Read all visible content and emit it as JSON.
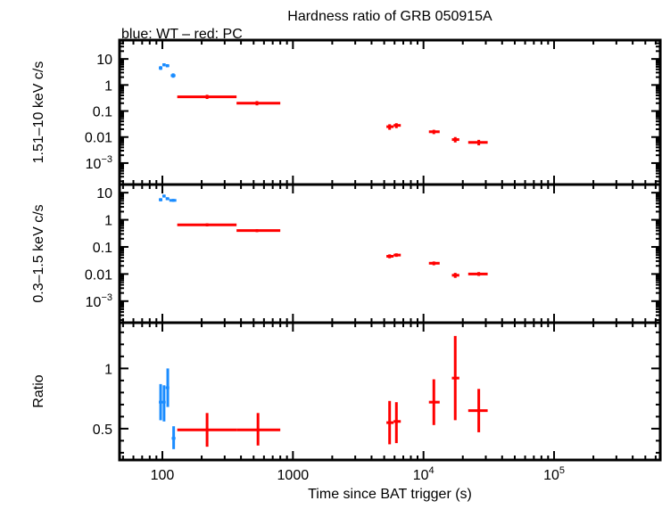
{
  "chart_data": {
    "type": "scatter",
    "title": "Hardness ratio of GRB 050915A",
    "subtitle": "blue: WT – red: PC",
    "xlabel": "Time since BAT trigger (s)",
    "xscale": "log",
    "xlim": [
      47,
      650000
    ],
    "xticks": [
      {
        "value": 100,
        "label": "100"
      },
      {
        "value": 1000,
        "label": "1000"
      },
      {
        "value": 10000,
        "base": "10",
        "exp": "4"
      },
      {
        "value": 100000,
        "base": "10",
        "exp": "5"
      }
    ],
    "colors": {
      "WT": "#1a8cff",
      "PC": "#ff0000"
    },
    "panels": [
      {
        "ylabel": "1.51–10 keV c/s",
        "yscale": "log",
        "ylim": [
          0.00015,
          53
        ],
        "yticks": [
          {
            "value": 10,
            "label": "10"
          },
          {
            "value": 1,
            "label": "1"
          },
          {
            "value": 0.1,
            "label": "0.1"
          },
          {
            "value": 0.01,
            "label": "0.01"
          },
          {
            "value": 0.001,
            "base": "10",
            "exp": "−3"
          }
        ],
        "series": [
          {
            "mode": "WT",
            "points": [
              {
                "x": 97,
                "xlo": 94,
                "xhi": 100,
                "y": 4.5,
                "ylo": 3.8,
                "yhi": 5.3
              },
              {
                "x": 103,
                "xlo": 100,
                "xhi": 106,
                "y": 6.0,
                "ylo": 5.2,
                "yhi": 6.8
              },
              {
                "x": 109,
                "xlo": 106,
                "xhi": 113,
                "y": 5.5,
                "ylo": 4.8,
                "yhi": 6.3
              },
              {
                "x": 121,
                "xlo": 116,
                "xhi": 126,
                "y": 2.3,
                "ylo": 1.9,
                "yhi": 2.8
              }
            ]
          },
          {
            "mode": "PC",
            "points": [
              {
                "x": 220,
                "xlo": 130,
                "xhi": 370,
                "y": 0.35,
                "ylo": 0.29,
                "yhi": 0.42
              },
              {
                "x": 530,
                "xlo": 370,
                "xhi": 800,
                "y": 0.2,
                "ylo": 0.165,
                "yhi": 0.24
              },
              {
                "x": 5500,
                "xlo": 5200,
                "xhi": 5900,
                "y": 0.025,
                "ylo": 0.019,
                "yhi": 0.031
              },
              {
                "x": 6200,
                "xlo": 5900,
                "xhi": 6700,
                "y": 0.028,
                "ylo": 0.022,
                "yhi": 0.034
              },
              {
                "x": 12000,
                "xlo": 11000,
                "xhi": 13300,
                "y": 0.016,
                "ylo": 0.013,
                "yhi": 0.019
              },
              {
                "x": 17500,
                "xlo": 16500,
                "xhi": 18800,
                "y": 0.008,
                "ylo": 0.0062,
                "yhi": 0.01
              },
              {
                "x": 26500,
                "xlo": 22000,
                "xhi": 31000,
                "y": 0.0062,
                "ylo": 0.0048,
                "yhi": 0.0078
              }
            ]
          }
        ]
      },
      {
        "ylabel": "0.3–1.5 keV c/s",
        "yscale": "log",
        "ylim": [
          0.00016,
          20
        ],
        "yticks": [
          {
            "value": 10,
            "label": "10"
          },
          {
            "value": 1,
            "label": "1"
          },
          {
            "value": 0.1,
            "label": "0.1"
          },
          {
            "value": 0.01,
            "label": "0.01"
          },
          {
            "value": 0.001,
            "base": "10",
            "exp": "−3"
          }
        ],
        "series": [
          {
            "mode": "WT",
            "points": [
              {
                "x": 97,
                "xlo": 94,
                "xhi": 100,
                "y": 5.5,
                "ylo": 4.8,
                "yhi": 6.3
              },
              {
                "x": 103,
                "xlo": 100,
                "xhi": 106,
                "y": 7.5,
                "ylo": 6.6,
                "yhi": 8.5
              },
              {
                "x": 109,
                "xlo": 106,
                "xhi": 113,
                "y": 6.0,
                "ylo": 5.3,
                "yhi": 6.8
              },
              {
                "x": 121,
                "xlo": 113,
                "xhi": 128,
                "y": 5.2,
                "ylo": 4.6,
                "yhi": 5.9
              }
            ]
          },
          {
            "mode": "PC",
            "points": [
              {
                "x": 220,
                "xlo": 130,
                "xhi": 370,
                "y": 0.65,
                "ylo": 0.57,
                "yhi": 0.74
              },
              {
                "x": 530,
                "xlo": 370,
                "xhi": 800,
                "y": 0.4,
                "ylo": 0.35,
                "yhi": 0.45
              },
              {
                "x": 5500,
                "xlo": 5200,
                "xhi": 5900,
                "y": 0.045,
                "ylo": 0.038,
                "yhi": 0.053
              },
              {
                "x": 6200,
                "xlo": 5900,
                "xhi": 6700,
                "y": 0.05,
                "ylo": 0.043,
                "yhi": 0.058
              },
              {
                "x": 12000,
                "xlo": 11000,
                "xhi": 13300,
                "y": 0.025,
                "ylo": 0.021,
                "yhi": 0.029
              },
              {
                "x": 17500,
                "xlo": 16500,
                "xhi": 18800,
                "y": 0.009,
                "ylo": 0.0072,
                "yhi": 0.011
              },
              {
                "x": 26500,
                "xlo": 22000,
                "xhi": 31000,
                "y": 0.01,
                "ylo": 0.0085,
                "yhi": 0.0118
              }
            ]
          }
        ]
      },
      {
        "ylabel": "Ratio",
        "yscale": "linear",
        "ylim": [
          0.24,
          1.38
        ],
        "yticks": [
          {
            "value": 1,
            "label": "1"
          },
          {
            "value": 0.5,
            "label": "0.5"
          }
        ],
        "series": [
          {
            "mode": "WT",
            "points": [
              {
                "x": 97,
                "xlo": 94,
                "xhi": 100,
                "y": 0.72,
                "ylo": 0.57,
                "yhi": 0.87
              },
              {
                "x": 103,
                "xlo": 100,
                "xhi": 106,
                "y": 0.72,
                "ylo": 0.56,
                "yhi": 0.86
              },
              {
                "x": 110,
                "xlo": 106,
                "xhi": 113,
                "y": 0.84,
                "ylo": 0.68,
                "yhi": 1.0
              },
              {
                "x": 122,
                "xlo": 118,
                "xhi": 126,
                "y": 0.42,
                "ylo": 0.33,
                "yhi": 0.52
              }
            ]
          },
          {
            "mode": "PC",
            "points": [
              {
                "x": 220,
                "xlo": 130,
                "xhi": 370,
                "y": 0.49,
                "ylo": 0.35,
                "yhi": 0.63
              },
              {
                "x": 540,
                "xlo": 370,
                "xhi": 800,
                "y": 0.49,
                "ylo": 0.36,
                "yhi": 0.63
              },
              {
                "x": 5500,
                "xlo": 5200,
                "xhi": 5900,
                "y": 0.55,
                "ylo": 0.37,
                "yhi": 0.73
              },
              {
                "x": 6200,
                "xlo": 5900,
                "xhi": 6700,
                "y": 0.56,
                "ylo": 0.38,
                "yhi": 0.72
              },
              {
                "x": 12000,
                "xlo": 11000,
                "xhi": 13300,
                "y": 0.72,
                "ylo": 0.53,
                "yhi": 0.91
              },
              {
                "x": 17500,
                "xlo": 16500,
                "xhi": 18800,
                "y": 0.92,
                "ylo": 0.57,
                "yhi": 1.27
              },
              {
                "x": 26500,
                "xlo": 22000,
                "xhi": 31000,
                "y": 0.65,
                "ylo": 0.47,
                "yhi": 0.83
              }
            ]
          }
        ]
      }
    ]
  }
}
